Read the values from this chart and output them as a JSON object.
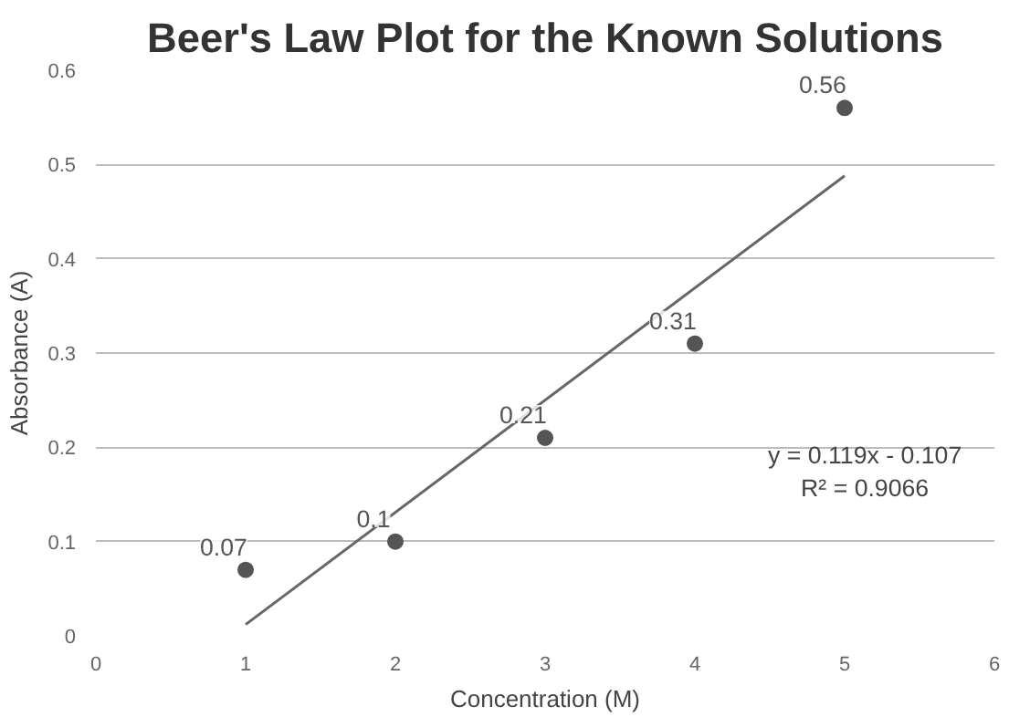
{
  "chart_data": {
    "type": "scatter",
    "title": "Beer's Law Plot for the Known Solutions",
    "xlabel": "Concentration (M)",
    "ylabel": "Absorbance (A)",
    "x": [
      1,
      2,
      3,
      4,
      5
    ],
    "series": [
      {
        "color": "#555555",
        "marker": "circle",
        "values": [
          0.07,
          0.1,
          0.21,
          0.31,
          0.56
        ],
        "value_labels": [
          "0.07",
          "0.1",
          "0.21",
          "0.31",
          "0.56"
        ]
      },
      {
        "type": "line",
        "color": "#666666",
        "line_style": "solid",
        "x": [
          1,
          5
        ],
        "values": [
          0.012,
          0.488
        ]
      }
    ],
    "xlim": [
      0,
      6
    ],
    "xticks": [
      0,
      1,
      2,
      3,
      4,
      5,
      6
    ],
    "ylim": [
      0,
      0.6
    ],
    "yticks": [
      0,
      0.1,
      0.2,
      0.3,
      0.4,
      0.5,
      0.6
    ],
    "grid": "y",
    "annotations": [
      "y = 0.119x - 0.107",
      "R² = 0.9066"
    ]
  }
}
